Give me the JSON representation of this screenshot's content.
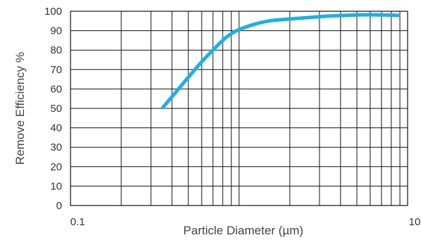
{
  "chart_data": {
    "type": "line",
    "title": "",
    "xlabel": "Particle Diameter (µm)",
    "ylabel": "Remove Efficiency %",
    "x_scale": "log",
    "xlim": [
      0.1,
      10
    ],
    "ylim": [
      0,
      100
    ],
    "x_tick_labels": [
      {
        "value": 0.1,
        "label": "0.1"
      },
      {
        "value": 10,
        "label": "10"
      }
    ],
    "y_ticks": [
      0,
      10,
      20,
      30,
      40,
      50,
      60,
      70,
      80,
      90,
      100
    ],
    "grid": true,
    "series_color": "#1ab0e8",
    "series": [
      {
        "x": [
          0.35,
          0.4,
          0.5,
          0.6,
          0.7,
          0.8,
          0.9,
          1.0,
          1.2,
          1.5,
          2.0,
          3.0,
          4.0,
          5.0,
          6.0,
          7.0,
          8.0,
          9.0
        ],
        "values": [
          50,
          56,
          66,
          74,
          80,
          85,
          88.5,
          90.5,
          93,
          95,
          96,
          97.2,
          97.8,
          98.1,
          98.2,
          98.1,
          98.0,
          97.8
        ]
      }
    ]
  }
}
